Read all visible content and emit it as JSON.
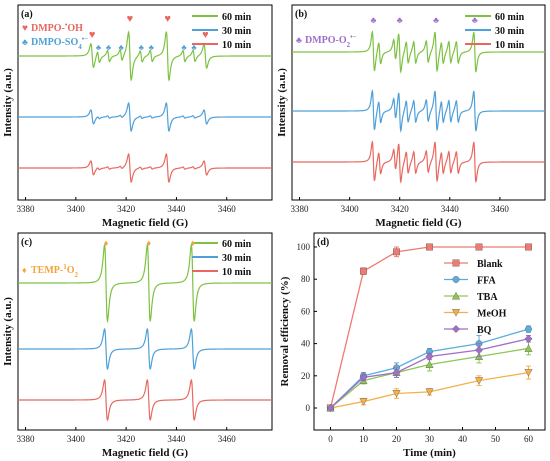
{
  "colors": {
    "green": "#7dc242",
    "blue": "#4f9fd8",
    "red": "#e8685f",
    "blank": "#ef7a70",
    "ffa": "#5aaede",
    "tba": "#8ec655",
    "meoh": "#f5b04c",
    "bq": "#9f6fcb",
    "ohmark": "#e8685f",
    "so4mark": "#4f9fd8",
    "o2mark": "#9f6fcb",
    "o1mark": "#f5a43a"
  },
  "chart_data": [
    {
      "id": "a",
      "type": "line",
      "panel_label": "(a)",
      "xlabel": "Magnetic field (G)",
      "ylabel": "Intensity (a.u.)",
      "xlim": [
        3377,
        3478
      ],
      "xticks": [
        3380,
        3400,
        3420,
        3440,
        3460
      ],
      "series": [
        {
          "name": "60 min",
          "color": "green"
        },
        {
          "name": "30 min",
          "color": "blue"
        },
        {
          "name": "10 min",
          "color": "red"
        }
      ],
      "annotations": [
        {
          "text": "DMPO-•OH",
          "marker": "♥",
          "color": "ohmark"
        },
        {
          "text": "DMPO-SO4•−",
          "marker": "♣",
          "color": "so4mark"
        }
      ],
      "oh_peaks": [
        3406.5,
        3421.5,
        3436.5,
        3451.5
      ],
      "oh_rel": [
        1,
        2,
        2,
        1
      ],
      "so4_peaks": [
        3409,
        3413,
        3418,
        3426,
        3430,
        3443,
        3447
      ],
      "amp": [
        1.0,
        0.55,
        0.55
      ]
    },
    {
      "id": "b",
      "type": "line",
      "panel_label": "(b)",
      "xlabel": "Magnetic field (G)",
      "ylabel": "Intensity (a.u.)",
      "xlim": [
        3377,
        3478
      ],
      "xticks": [
        3380,
        3400,
        3420,
        3440,
        3460
      ],
      "series": [
        {
          "name": "60 min",
          "color": "green"
        },
        {
          "name": "30 min",
          "color": "blue"
        },
        {
          "name": "10 min",
          "color": "red"
        }
      ],
      "annotations": [
        {
          "text": "DMPO-O2•−",
          "marker": "♣",
          "color": "o2mark"
        }
      ],
      "main_peaks": [
        3409.5,
        3420,
        3434.5,
        3450
      ],
      "minor_peaks": [
        3412,
        3418,
        3423,
        3426,
        3431,
        3437,
        3440,
        3443
      ],
      "amp": [
        1.0,
        1.0,
        1.0
      ]
    },
    {
      "id": "c",
      "type": "line",
      "panel_label": "(c)",
      "xlabel": "Magnetic field (G)",
      "ylabel": "Intensity (a.u.)",
      "xlim": [
        3377,
        3478
      ],
      "xticks": [
        3380,
        3400,
        3420,
        3440,
        3460
      ],
      "series": [
        {
          "name": "60 min",
          "color": "green"
        },
        {
          "name": "30 min",
          "color": "blue"
        },
        {
          "name": "10 min",
          "color": "red"
        }
      ],
      "annotations": [
        {
          "text": "TEMP-1O2",
          "marker": "♦",
          "color": "o1mark"
        }
      ],
      "peaks": [
        3412,
        3429,
        3446.5
      ],
      "amp": [
        1.0,
        0.55,
        0.55
      ]
    },
    {
      "id": "d",
      "type": "line",
      "panel_label": "(d)",
      "xlabel": "Time (min)",
      "ylabel": "Removal efficiency (%)",
      "xlim": [
        -5,
        65
      ],
      "ylim": [
        0,
        100
      ],
      "xticks": [
        0,
        10,
        20,
        30,
        40,
        50,
        60
      ],
      "yticks": [
        0,
        20,
        40,
        60,
        80,
        100
      ],
      "x": [
        0,
        10,
        20,
        30,
        45,
        60
      ],
      "series": [
        {
          "name": "Blank",
          "color": "blank",
          "marker": "square",
          "values": [
            0,
            85,
            97,
            100,
            100,
            100
          ],
          "err": [
            0,
            2,
            3,
            0,
            0,
            0
          ]
        },
        {
          "name": "FFA",
          "color": "ffa",
          "marker": "circle",
          "values": [
            0,
            20,
            25,
            35,
            40,
            49
          ],
          "err": [
            0,
            2,
            3,
            2,
            5,
            2
          ]
        },
        {
          "name": "TBA",
          "color": "tba",
          "marker": "triangle",
          "values": [
            0,
            17,
            22,
            27,
            32,
            37
          ],
          "err": [
            0,
            2,
            3,
            4,
            4,
            4
          ]
        },
        {
          "name": "MeOH",
          "color": "meoh",
          "marker": "triangle-down",
          "values": [
            0,
            4,
            9,
            10,
            17,
            22
          ],
          "err": [
            0,
            2,
            3,
            2,
            3,
            4
          ]
        },
        {
          "name": "BQ",
          "color": "bq",
          "marker": "diamond",
          "values": [
            0,
            19,
            22,
            32,
            36,
            43
          ],
          "err": [
            0,
            2,
            3,
            2,
            4,
            2
          ]
        }
      ]
    }
  ]
}
